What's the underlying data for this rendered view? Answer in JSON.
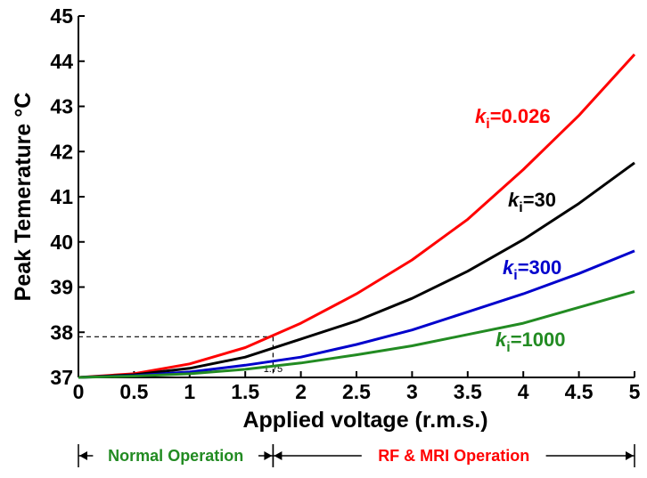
{
  "chart_data": {
    "type": "line",
    "xlabel": "Applied voltage (r.m.s.)",
    "ylabel": "Peak Temerature °C",
    "xlim": [
      0,
      5
    ],
    "ylim": [
      37,
      45
    ],
    "x_ticks": [
      "0",
      "0.5",
      "1",
      "1.5",
      "2",
      "2.5",
      "3",
      "3.5",
      "4",
      "4.5",
      "5"
    ],
    "y_ticks": [
      "37",
      "38",
      "39",
      "40",
      "41",
      "42",
      "43",
      "44",
      "45"
    ],
    "x": [
      0,
      0.5,
      1,
      1.5,
      2,
      2.5,
      3,
      3.5,
      4,
      4.5,
      5
    ],
    "series": [
      {
        "name": "0.026",
        "color": "#ff0000",
        "values": [
          37.0,
          37.08,
          37.3,
          37.66,
          38.2,
          38.85,
          39.6,
          40.5,
          41.6,
          42.8,
          44.15
        ]
      },
      {
        "name": "30",
        "color": "#000000",
        "values": [
          37.0,
          37.06,
          37.2,
          37.45,
          37.85,
          38.25,
          38.75,
          39.35,
          40.05,
          40.85,
          41.75
        ]
      },
      {
        "name": "300",
        "color": "#0000cc",
        "values": [
          37.0,
          37.04,
          37.12,
          37.27,
          37.45,
          37.73,
          38.05,
          38.45,
          38.85,
          39.3,
          39.8
        ]
      },
      {
        "name": "1000",
        "color": "#228b22",
        "values": [
          37.0,
          37.03,
          37.08,
          37.18,
          37.32,
          37.5,
          37.7,
          37.95,
          38.2,
          38.55,
          38.9
        ]
      }
    ],
    "series_label_prefix": "k",
    "series_label_subscript": "i",
    "series_label_sep": "=",
    "annotation": {
      "x": 1.75,
      "y": 37.9,
      "x_label": "1.75"
    },
    "regions": [
      {
        "label": "Normal Operation",
        "from": 0,
        "to": 1.75,
        "color": "#228b22"
      },
      {
        "label": "RF & MRI Operation",
        "from": 1.75,
        "to": 5,
        "color": "#ff0000"
      }
    ],
    "grid": false
  }
}
